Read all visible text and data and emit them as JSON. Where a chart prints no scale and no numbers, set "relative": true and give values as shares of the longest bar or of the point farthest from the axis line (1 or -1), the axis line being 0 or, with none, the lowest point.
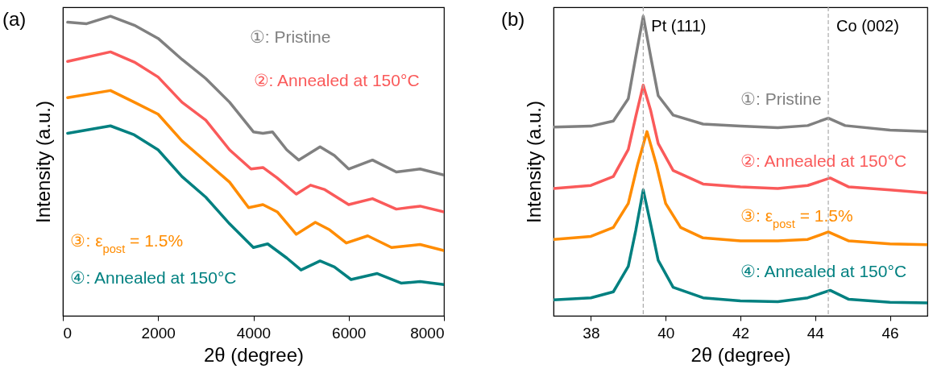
{
  "chart_data": [
    {
      "type": "line",
      "title": "(a)",
      "xlabel": "2θ (degree)",
      "ylabel": "Intensity (a.u.)",
      "relative": true,
      "xlim": [
        0,
        8000
      ],
      "xticks": [
        0,
        2000,
        4000,
        6000,
        8000
      ],
      "series": [
        {
          "name": "①: Pristine",
          "color": "#808080",
          "x": [
            100,
            500,
            1000,
            1500,
            2000,
            2500,
            3000,
            3500,
            4000,
            4200,
            4400,
            4700,
            4950,
            5400,
            5700,
            6000,
            6500,
            7000,
            7500,
            8000
          ],
          "values": [
            0.98,
            0.975,
            1.0,
            0.97,
            0.926,
            0.856,
            0.792,
            0.713,
            0.614,
            0.609,
            0.614,
            0.554,
            0.52,
            0.564,
            0.535,
            0.49,
            0.52,
            0.48,
            0.49,
            0.47
          ]
        },
        {
          "name": "②: Annealed at 150°C",
          "color": "#fa5a5a",
          "x": [
            100,
            1000,
            1500,
            2000,
            2500,
            3000,
            3500,
            3950,
            4200,
            4500,
            4900,
            5200,
            5500,
            6000,
            6500,
            7000,
            7500,
            8000
          ],
          "values": [
            0.849,
            0.881,
            0.847,
            0.797,
            0.713,
            0.653,
            0.554,
            0.49,
            0.495,
            0.46,
            0.406,
            0.436,
            0.421,
            0.371,
            0.391,
            0.356,
            0.366,
            0.347
          ]
        },
        {
          "name": "③: ε$_{post}$ = 1.5%",
          "color": "#ff8c00",
          "x": [
            100,
            1000,
            1500,
            2000,
            2500,
            3000,
            3500,
            3900,
            4200,
            4500,
            4900,
            5300,
            5600,
            5950,
            6400,
            6900,
            7500,
            8000
          ],
          "values": [
            0.728,
            0.752,
            0.713,
            0.673,
            0.584,
            0.515,
            0.446,
            0.361,
            0.371,
            0.347,
            0.272,
            0.312,
            0.287,
            0.243,
            0.267,
            0.228,
            0.238,
            0.218
          ]
        },
        {
          "name": "④: Annealed at 150°C",
          "color": "#008080",
          "x": [
            100,
            1000,
            1500,
            2000,
            2500,
            3000,
            3500,
            4000,
            4300,
            4700,
            5000,
            5400,
            5700,
            6050,
            6600,
            7100,
            7500,
            8000
          ],
          "values": [
            0.609,
            0.634,
            0.604,
            0.554,
            0.465,
            0.396,
            0.307,
            0.228,
            0.24,
            0.193,
            0.153,
            0.183,
            0.163,
            0.121,
            0.141,
            0.109,
            0.114,
            0.104
          ]
        }
      ]
    },
    {
      "type": "line",
      "title": "(b)",
      "xlabel": "2θ (degree)",
      "ylabel": "Intensity (a.u.)",
      "relative": true,
      "xlim": [
        37,
        47
      ],
      "xticks": [
        38,
        40,
        42,
        44,
        46
      ],
      "ref_lines": [
        {
          "axis": "x",
          "value": 39.4,
          "label": "Pt (111)",
          "color": "#aaaaaa",
          "line_style": "dashed"
        },
        {
          "axis": "x",
          "value": 44.35,
          "label": "Co (002)",
          "color": "#aaaaaa",
          "line_style": "dashed"
        }
      ],
      "series": [
        {
          "name": "①: Pristine",
          "color": "#808080",
          "x": [
            37,
            38,
            38.6,
            39,
            39.2,
            39.4,
            39.6,
            39.8,
            40.2,
            41,
            42,
            43,
            43.8,
            44.35,
            44.8,
            46,
            47
          ],
          "values": [
            0.63,
            0.633,
            0.65,
            0.725,
            0.865,
            1.0,
            0.865,
            0.735,
            0.67,
            0.64,
            0.633,
            0.628,
            0.635,
            0.66,
            0.635,
            0.62,
            0.615
          ]
        },
        {
          "name": "②: Annealed at 150°C",
          "color": "#fa5a5a",
          "x": [
            37,
            38,
            38.6,
            39,
            39.2,
            39.4,
            39.6,
            39.8,
            40.2,
            41,
            42,
            43,
            43.8,
            44.4,
            44.9,
            46,
            47
          ],
          "values": [
            0.425,
            0.435,
            0.465,
            0.555,
            0.665,
            0.77,
            0.685,
            0.575,
            0.485,
            0.44,
            0.43,
            0.425,
            0.435,
            0.46,
            0.43,
            0.42,
            0.41
          ]
        },
        {
          "name": "③: ε$_{post}$ = 1.5%",
          "color": "#ff8c00",
          "x": [
            37,
            38,
            38.6,
            39,
            39.25,
            39.5,
            39.75,
            40,
            40.4,
            41,
            42,
            43,
            43.8,
            44.35,
            44.9,
            46,
            47
          ],
          "values": [
            0.255,
            0.265,
            0.295,
            0.375,
            0.505,
            0.615,
            0.505,
            0.375,
            0.295,
            0.26,
            0.25,
            0.25,
            0.255,
            0.28,
            0.25,
            0.24,
            0.237
          ]
        },
        {
          "name": "④: Annealed at 150°C",
          "color": "#008080",
          "x": [
            37,
            38,
            38.6,
            39,
            39.2,
            39.4,
            39.6,
            39.8,
            40.2,
            41,
            42,
            43,
            43.8,
            44.4,
            44.9,
            46,
            47
          ],
          "values": [
            0.053,
            0.06,
            0.08,
            0.165,
            0.285,
            0.42,
            0.305,
            0.185,
            0.095,
            0.06,
            0.05,
            0.047,
            0.06,
            0.085,
            0.055,
            0.045,
            0.043
          ]
        }
      ]
    }
  ]
}
